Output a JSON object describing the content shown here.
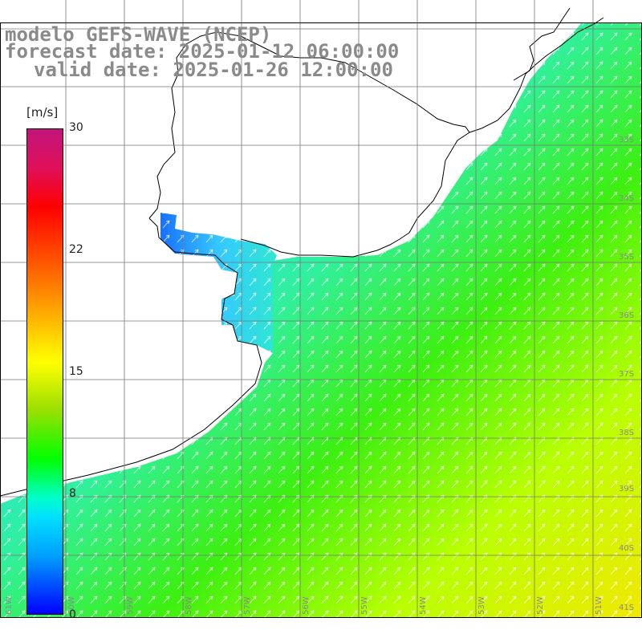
{
  "title": {
    "line1": "modelo GEFS-WAVE (NCEP)",
    "line2": "forecast date: 2025-01-12 06:00:00",
    "line3": "valid date: 2025-01-26 12:00:00"
  },
  "colorbar": {
    "unit": "[m/s]",
    "ticks": [
      {
        "label": "30",
        "value": 30
      },
      {
        "label": "22",
        "value": 22
      },
      {
        "label": "15",
        "value": 15
      },
      {
        "label": "8",
        "value": 8
      },
      {
        "label": "0",
        "value": 0
      }
    ]
  },
  "lat_labels": [
    "33S",
    "34S",
    "35S",
    "36S",
    "37S",
    "38S",
    "39S",
    "40S",
    "41S"
  ],
  "lon_labels": [
    "61W",
    "60W",
    "59W",
    "58W",
    "57W",
    "56W",
    "55W",
    "54W",
    "53W",
    "52W",
    "51W"
  ],
  "colors": {
    "grid": "#777777",
    "coast": "#000000",
    "land": "#ffffff",
    "label": "#8a8a8a"
  }
}
